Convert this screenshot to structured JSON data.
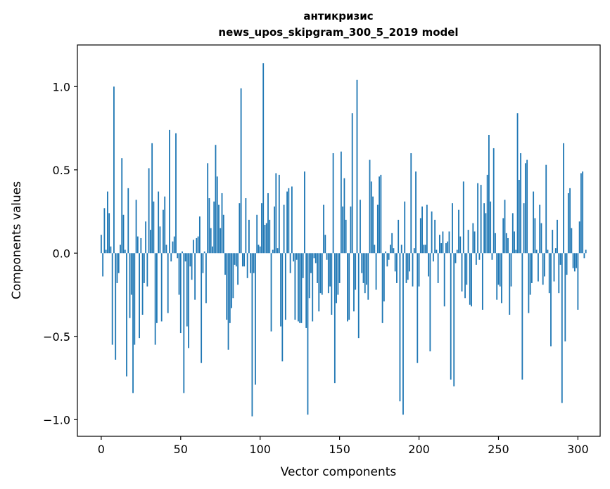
{
  "chart_data": {
    "type": "bar",
    "title": "антикризис",
    "subtitle": "news_upos_skipgram_300_5_2019 model",
    "xlabel": "Vector components",
    "ylabel": "Components values",
    "xlim": [
      -15,
      314
    ],
    "ylim": [
      -1.1,
      1.25
    ],
    "xticks": [
      0,
      50,
      100,
      150,
      200,
      250,
      300
    ],
    "yticks": [
      -1.0,
      -0.5,
      0.0,
      0.5,
      1.0
    ],
    "ytick_labels": [
      "−1.0",
      "−0.5",
      "0.0",
      "0.5",
      "1.0"
    ],
    "bar_color": "#1f77b4",
    "grid": false,
    "legend": "none",
    "values": [
      0.11,
      -0.14,
      0.27,
      0.02,
      0.37,
      0.24,
      0.04,
      -0.55,
      1.0,
      -0.64,
      -0.18,
      -0.12,
      0.05,
      0.57,
      0.23,
      0.02,
      -0.74,
      0.39,
      -0.39,
      -0.25,
      -0.84,
      -0.55,
      0.32,
      0.1,
      -0.51,
      0.09,
      -0.37,
      -0.18,
      0.19,
      -0.2,
      0.51,
      0.14,
      0.66,
      0.31,
      -0.55,
      -0.42,
      0.37,
      0.16,
      -0.41,
      0.26,
      0.34,
      0.05,
      -0.36,
      0.74,
      -0.05,
      0.07,
      0.1,
      0.72,
      -0.03,
      -0.25,
      -0.48,
      0.01,
      -0.84,
      -0.05,
      -0.44,
      -0.57,
      -0.08,
      -0.16,
      0.08,
      -0.28,
      0.09,
      0.1,
      0.22,
      -0.66,
      -0.12,
      0.01,
      -0.3,
      0.54,
      0.33,
      0.15,
      0.04,
      0.31,
      0.65,
      0.46,
      0.29,
      0.15,
      0.36,
      0.23,
      -0.13,
      -0.4,
      -0.58,
      -0.42,
      -0.33,
      -0.27,
      -0.07,
      -0.08,
      -0.19,
      0.3,
      0.99,
      -0.08,
      -0.08,
      0.33,
      -0.15,
      0.2,
      -0.12,
      -0.98,
      -0.12,
      -0.79,
      0.23,
      0.05,
      0.04,
      0.3,
      1.14,
      0.17,
      0.18,
      0.36,
      0.2,
      -0.47,
      0.02,
      0.28,
      0.48,
      0.03,
      0.47,
      -0.44,
      -0.65,
      0.29,
      -0.4,
      0.37,
      0.39,
      -0.12,
      0.4,
      -0.05,
      -0.4,
      -0.04,
      -0.41,
      -0.42,
      -0.42,
      -0.15,
      0.49,
      -0.45,
      -0.97,
      -0.27,
      -0.12,
      -0.41,
      -0.03,
      -0.06,
      -0.18,
      -0.35,
      -0.24,
      -0.25,
      0.29,
      0.11,
      -0.04,
      -0.24,
      -0.2,
      -0.37,
      0.6,
      -0.78,
      -0.3,
      -0.25,
      -0.18,
      0.61,
      0.28,
      0.45,
      0.2,
      -0.41,
      -0.4,
      0.28,
      0.84,
      -0.35,
      -0.22,
      1.04,
      -0.51,
      0.32,
      -0.12,
      -0.18,
      -0.24,
      -0.19,
      -0.28,
      0.56,
      0.43,
      0.34,
      0.05,
      -0.22,
      0.29,
      0.46,
      0.47,
      -0.42,
      -0.29,
      0.01,
      -0.08,
      -0.04,
      0.05,
      0.12,
      0.03,
      -0.11,
      -0.18,
      0.2,
      -0.89,
      0.05,
      -0.97,
      0.31,
      -0.18,
      -0.16,
      -0.11,
      0.6,
      -0.2,
      0.03,
      0.49,
      -0.66,
      -0.2,
      0.21,
      0.28,
      0.05,
      0.05,
      0.29,
      -0.14,
      -0.59,
      0.25,
      -0.05,
      0.2,
      0.02,
      -0.18,
      0.11,
      0.06,
      0.13,
      -0.32,
      0.06,
      0.07,
      0.13,
      -0.76,
      0.3,
      -0.8,
      -0.06,
      0.02,
      0.26,
      0.1,
      -0.23,
      0.43,
      -0.27,
      -0.19,
      0.14,
      -0.31,
      -0.32,
      0.18,
      0.13,
      -0.07,
      0.42,
      -0.04,
      0.41,
      -0.34,
      0.3,
      0.24,
      0.47,
      0.71,
      0.31,
      -0.04,
      0.63,
      0.12,
      -0.28,
      -0.19,
      -0.2,
      -0.3,
      0.21,
      0.32,
      0.12,
      0.09,
      -0.37,
      -0.2,
      0.24,
      0.13,
      0.02,
      0.84,
      0.44,
      0.6,
      -0.76,
      0.3,
      0.54,
      0.56,
      -0.36,
      -0.25,
      -0.18,
      0.37,
      0.21,
      0.02,
      -0.17,
      0.29,
      0.18,
      -0.19,
      -0.14,
      0.53,
      0.02,
      -0.24,
      -0.56,
      0.14,
      -0.17,
      0.03,
      0.2,
      -0.24,
      -0.07,
      -0.9,
      0.66,
      -0.53,
      -0.13,
      0.36,
      0.39,
      0.15,
      -0.09,
      -0.11,
      -0.09,
      -0.34,
      0.19,
      0.48,
      0.49,
      -0.03,
      0.02
    ]
  }
}
